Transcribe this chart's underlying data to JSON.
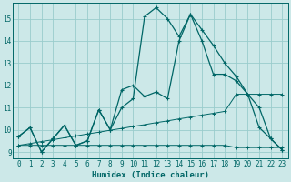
{
  "xlabel": "Humidex (Indice chaleur)",
  "bg_color": "#cce8e8",
  "grid_color": "#99cccc",
  "line_color": "#006666",
  "xlim": [
    -0.5,
    23.5
  ],
  "ylim": [
    8.7,
    15.7
  ],
  "xticks": [
    0,
    1,
    2,
    3,
    4,
    5,
    6,
    7,
    8,
    9,
    10,
    11,
    12,
    13,
    14,
    15,
    16,
    17,
    18,
    19,
    20,
    21,
    22,
    23
  ],
  "yticks": [
    9,
    10,
    11,
    12,
    13,
    14,
    15
  ],
  "curve1_x": [
    0,
    1,
    2,
    3,
    4,
    5,
    6,
    7,
    8,
    9,
    10,
    11,
    12,
    13,
    14,
    15,
    16,
    17,
    18,
    19,
    20,
    21,
    22,
    23
  ],
  "curve1_y": [
    9.7,
    10.1,
    9.0,
    9.6,
    10.2,
    9.3,
    9.5,
    10.9,
    10.0,
    11.8,
    12.0,
    11.5,
    11.7,
    11.4,
    14.0,
    15.2,
    14.5,
    13.8,
    13.0,
    12.4,
    11.6,
    10.1,
    9.6,
    9.1
  ],
  "curve2_x": [
    0,
    1,
    2,
    3,
    4,
    5,
    6,
    7,
    8,
    9,
    10,
    11,
    12,
    13,
    14,
    15,
    16,
    17,
    18,
    19,
    20,
    21,
    22,
    23
  ],
  "curve2_y": [
    9.7,
    10.1,
    9.0,
    9.6,
    10.2,
    9.3,
    9.5,
    10.9,
    10.0,
    11.0,
    11.4,
    15.1,
    15.5,
    15.0,
    14.2,
    15.2,
    14.0,
    12.5,
    12.5,
    12.2,
    11.6,
    11.0,
    9.6,
    9.1
  ],
  "curve3_y": [
    9.3,
    9.3,
    9.3,
    9.3,
    9.3,
    9.3,
    9.3,
    9.3,
    9.3,
    9.3,
    9.3,
    9.3,
    9.3,
    9.3,
    9.3,
    9.3,
    9.3,
    9.3,
    9.3,
    9.2,
    9.2,
    9.2,
    9.2,
    9.2
  ],
  "curve4_y": [
    9.3,
    9.38,
    9.47,
    9.55,
    9.64,
    9.72,
    9.81,
    9.89,
    9.98,
    10.06,
    10.15,
    10.23,
    10.32,
    10.4,
    10.49,
    10.57,
    10.66,
    10.74,
    10.83,
    11.6,
    11.6,
    11.6,
    11.6,
    11.6
  ]
}
